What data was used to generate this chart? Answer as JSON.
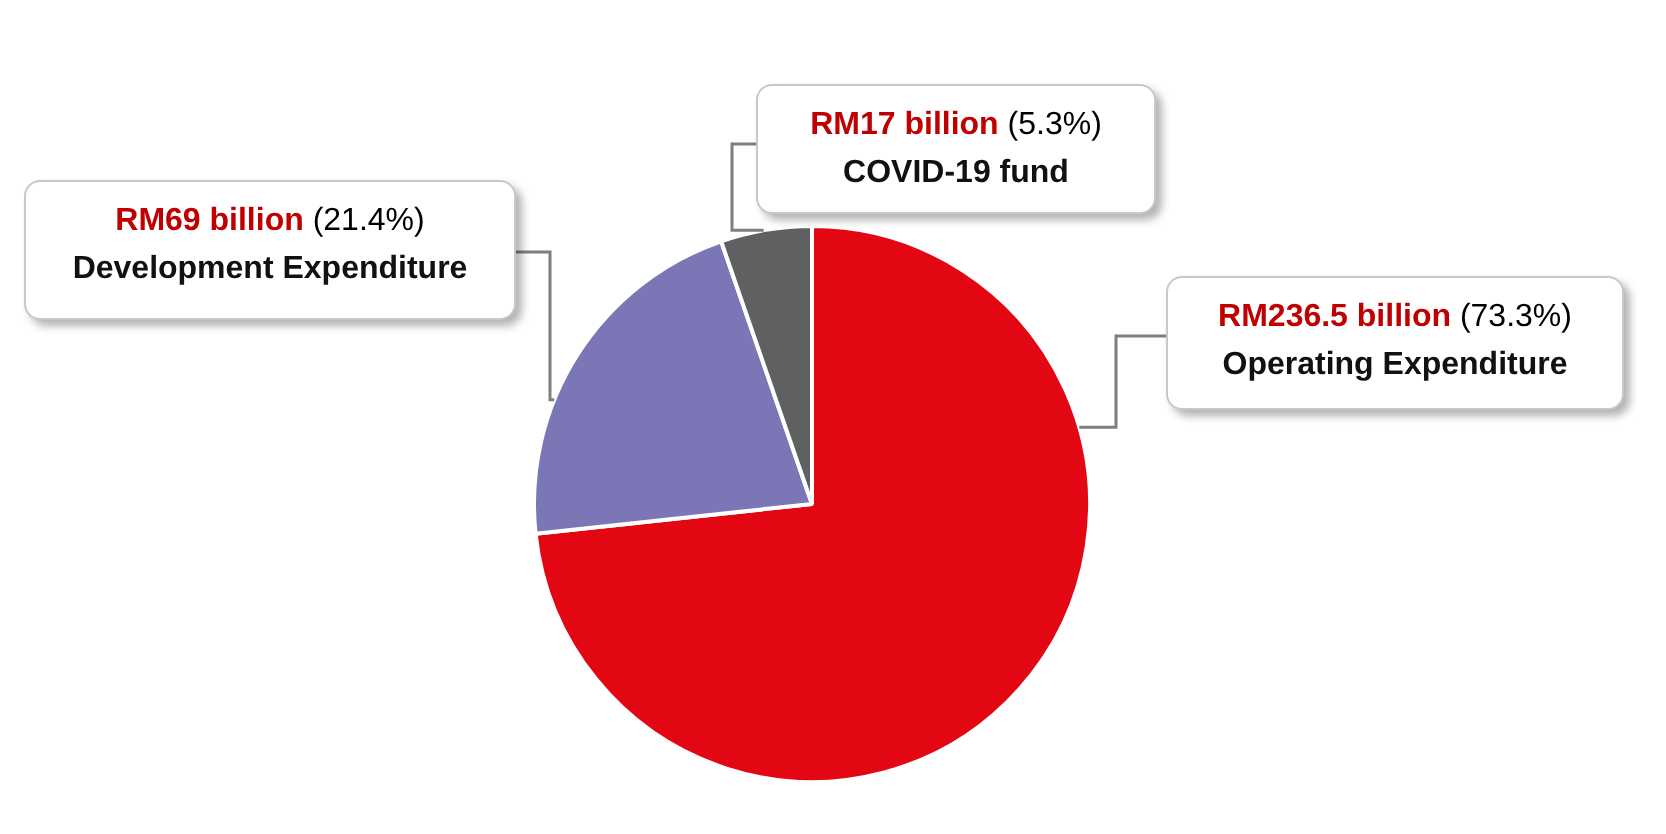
{
  "chart_data": {
    "type": "pie",
    "categories": [
      "Operating Expenditure",
      "Development Expenditure",
      "COVID-19 fund"
    ],
    "values": [
      73.3,
      21.4,
      5.3
    ],
    "colors": [
      "#e30613",
      "#7b76b6",
      "#5f6062"
    ],
    "value_labels": [
      "RM236.5 billion (73.3%)",
      "RM69 billion (21.4%)",
      "RM17 billion (5.3%)"
    ],
    "legend": false
  }
}
